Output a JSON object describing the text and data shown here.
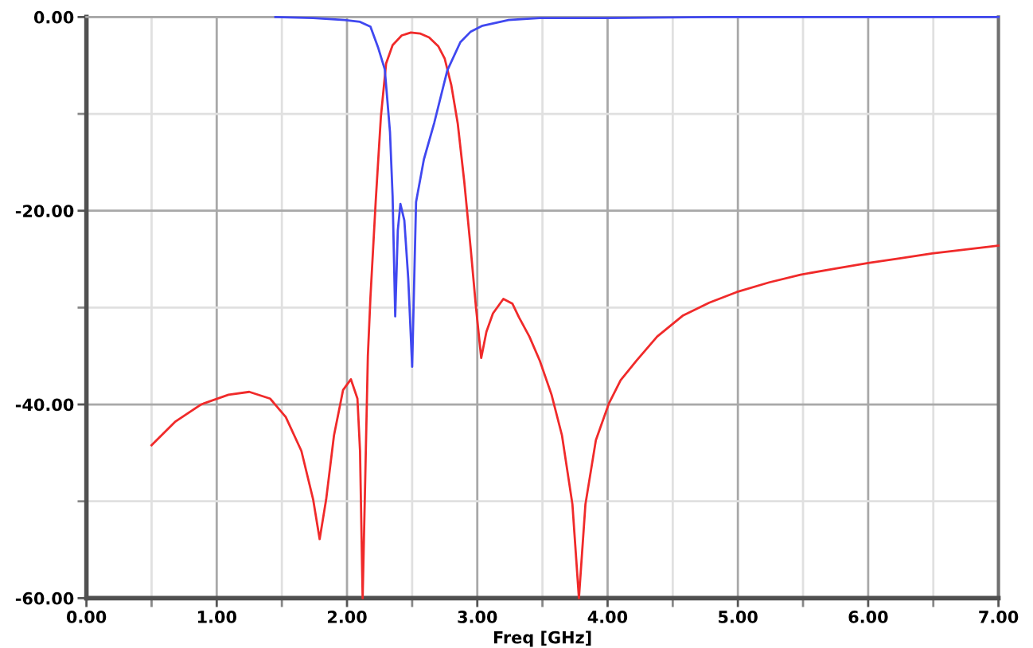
{
  "chart_data": {
    "type": "line",
    "xlabel": "Freq [GHz]",
    "xlim": [
      0,
      7
    ],
    "ylim": [
      -60,
      0
    ],
    "xticks": [
      {
        "value": 0,
        "label": "0.00"
      },
      {
        "value": 0.5,
        "label": null
      },
      {
        "value": 1,
        "label": "1.00"
      },
      {
        "value": 1.5,
        "label": null
      },
      {
        "value": 2,
        "label": "2.00"
      },
      {
        "value": 2.5,
        "label": null
      },
      {
        "value": 3,
        "label": "3.00"
      },
      {
        "value": 3.5,
        "label": null
      },
      {
        "value": 4,
        "label": "4.00"
      },
      {
        "value": 4.5,
        "label": null
      },
      {
        "value": 5,
        "label": "5.00"
      },
      {
        "value": 5.5,
        "label": null
      },
      {
        "value": 6,
        "label": "6.00"
      },
      {
        "value": 6.5,
        "label": null
      },
      {
        "value": 7,
        "label": "7.00"
      }
    ],
    "yticks": [
      {
        "value": -60,
        "label": "-60.00"
      },
      {
        "value": -50,
        "label": null
      },
      {
        "value": -40,
        "label": "-40.00"
      },
      {
        "value": -30,
        "label": null
      },
      {
        "value": -20,
        "label": "-20.00"
      },
      {
        "value": -10,
        "label": null
      },
      {
        "value": 0,
        "label": "0.00"
      }
    ],
    "grid": true,
    "line_style": "solid",
    "series": [
      {
        "color": "#f02a2a",
        "x": [
          0.5,
          0.68,
          0.88,
          1.09,
          1.25,
          1.41,
          1.53,
          1.65,
          1.74,
          1.79,
          1.84,
          1.9,
          1.97,
          2.03,
          2.08,
          2.1,
          2.12,
          2.14,
          2.16,
          2.18,
          2.22,
          2.26,
          2.3,
          2.35,
          2.42,
          2.49,
          2.56,
          2.63,
          2.7,
          2.75,
          2.8,
          2.85,
          2.9,
          2.95,
          2.99,
          3.03,
          3.07,
          3.12,
          3.2,
          3.27,
          3.32,
          3.4,
          3.48,
          3.57,
          3.65,
          3.73,
          3.78,
          3.83,
          3.91,
          4.01,
          4.1,
          4.22,
          4.38,
          4.58,
          4.78,
          4.99,
          5.24,
          5.48,
          5.74,
          6.0,
          6.25,
          6.49,
          6.75,
          7.0
        ],
        "values": [
          -44.2,
          -41.8,
          -40.0,
          -39.0,
          -38.7,
          -39.4,
          -41.3,
          -44.8,
          -49.8,
          -53.9,
          -49.8,
          -43.2,
          -38.5,
          -37.4,
          -39.4,
          -44.8,
          -60,
          -47.6,
          -35,
          -28.9,
          -19.1,
          -10.3,
          -4.8,
          -2.9,
          -1.9,
          -1.6,
          -1.7,
          -2.1,
          -3.0,
          -4.3,
          -7.0,
          -11.0,
          -17.0,
          -24.0,
          -30.0,
          -35.2,
          -32.5,
          -30.6,
          -29.1,
          -29.6,
          -31.0,
          -33.0,
          -35.5,
          -39.0,
          -43.2,
          -50.3,
          -60,
          -50.3,
          -43.7,
          -39.9,
          -37.5,
          -35.5,
          -33.0,
          -30.8,
          -29.5,
          -28.4,
          -27.4,
          -26.6,
          -26.0,
          -25.4,
          -24.9,
          -24.4,
          -24.0,
          -23.6
        ]
      },
      {
        "color": "#4048f0",
        "x": [
          1.45,
          1.74,
          1.98,
          2.1,
          2.18,
          2.24,
          2.29,
          2.33,
          2.35,
          2.37,
          2.39,
          2.41,
          2.44,
          2.47,
          2.5,
          2.53,
          2.59,
          2.67,
          2.77,
          2.87,
          2.95,
          3.04,
          3.24,
          3.48,
          4.0,
          4.8,
          7.0
        ],
        "values": [
          0.0,
          -0.1,
          -0.3,
          -0.5,
          -1.0,
          -3.2,
          -5.4,
          -11.9,
          -18.5,
          -30.9,
          -22.0,
          -19.3,
          -21.0,
          -27.0,
          -36.1,
          -19.1,
          -14.7,
          -10.9,
          -5.5,
          -2.6,
          -1.5,
          -0.9,
          -0.3,
          -0.1,
          -0.1,
          0.0,
          0.0
        ]
      }
    ]
  }
}
